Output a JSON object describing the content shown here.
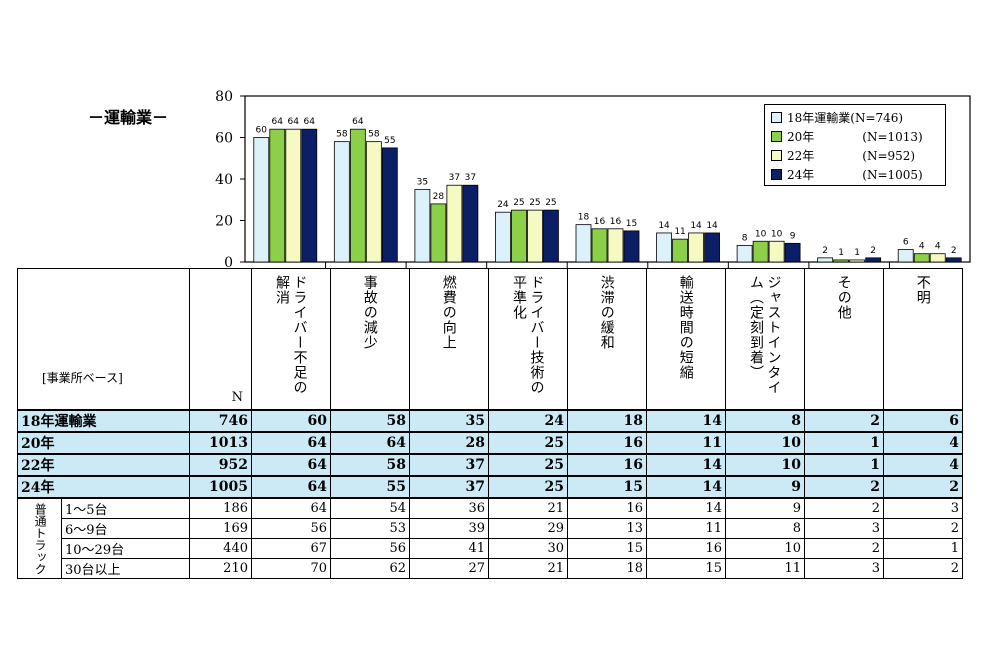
{
  "title": "－運輸業－",
  "colors": {
    "s18": "#ddf1fb",
    "s20": "#8ccf48",
    "s22": "#f7f9c2",
    "s24": "#0b1f66",
    "row_highlight": "#cce9f6"
  },
  "chart_data": {
    "type": "bar",
    "categories": [
      "ドライバー不足の解消",
      "事故の減少",
      "燃費の向上",
      "ドライバー技術の平準化",
      "渋滞の緩和",
      "輸送時間の短縮",
      "ジャストインタイム（定刻到着）",
      "その他",
      "不明"
    ],
    "series": [
      {
        "name": "18年運輸業(N=746)",
        "values": [
          60,
          58,
          35,
          24,
          18,
          14,
          8,
          2,
          6
        ]
      },
      {
        "name": "20年　　　　(N=1013)",
        "values": [
          64,
          64,
          28,
          25,
          16,
          11,
          10,
          1,
          4
        ]
      },
      {
        "name": "22年　　　　(N=952)",
        "values": [
          64,
          58,
          37,
          25,
          16,
          14,
          10,
          1,
          4
        ]
      },
      {
        "name": "24年　　　　(N=1005)",
        "values": [
          64,
          55,
          37,
          25,
          15,
          14,
          9,
          2,
          2
        ]
      }
    ],
    "ylim": [
      0,
      80
    ],
    "yticks": [
      "0",
      "20",
      "40",
      "60",
      "80"
    ],
    "legend_position": "top-right",
    "grid": false
  },
  "legend": [
    {
      "label": "18年運輸業(N=746)"
    },
    {
      "label": "20年　　　　(N=1013)"
    },
    {
      "label": "22年　　　　(N=952)"
    },
    {
      "label": "24年　　　　(N=1005)"
    }
  ],
  "table": {
    "base_label": "[事業所ベース]",
    "n_label": "N",
    "headers": [
      "ドライバー不足の解消",
      "事故の減少",
      "燃費の向上",
      "ドライバー技術の平準化",
      "渋滞の緩和",
      "輸送時間の短縮",
      "ジャストインタイム（定刻到着）",
      "その他",
      "不明"
    ],
    "main_rows": [
      {
        "label": "18年運輸業",
        "n": "746",
        "values": [
          "60",
          "58",
          "35",
          "24",
          "18",
          "14",
          "8",
          "2",
          "6"
        ]
      },
      {
        "label": "20年",
        "n": "1013",
        "values": [
          "64",
          "64",
          "28",
          "25",
          "16",
          "11",
          "10",
          "1",
          "4"
        ]
      },
      {
        "label": "22年",
        "n": "952",
        "values": [
          "64",
          "58",
          "37",
          "25",
          "16",
          "14",
          "10",
          "1",
          "4"
        ]
      },
      {
        "label": "24年",
        "n": "1005",
        "values": [
          "64",
          "55",
          "37",
          "25",
          "15",
          "14",
          "9",
          "2",
          "2"
        ]
      }
    ],
    "group_label": "普通トラック",
    "sub_rows": [
      {
        "label": "1～5台",
        "n": "186",
        "values": [
          "64",
          "54",
          "36",
          "21",
          "16",
          "14",
          "9",
          "2",
          "3"
        ]
      },
      {
        "label": "6～9台",
        "n": "169",
        "values": [
          "56",
          "53",
          "39",
          "29",
          "13",
          "11",
          "8",
          "3",
          "2"
        ]
      },
      {
        "label": "10～29台",
        "n": "440",
        "values": [
          "67",
          "56",
          "41",
          "30",
          "15",
          "16",
          "10",
          "2",
          "1"
        ]
      },
      {
        "label": "30台以上",
        "n": "210",
        "values": [
          "70",
          "62",
          "27",
          "21",
          "18",
          "15",
          "11",
          "3",
          "2"
        ]
      }
    ]
  }
}
